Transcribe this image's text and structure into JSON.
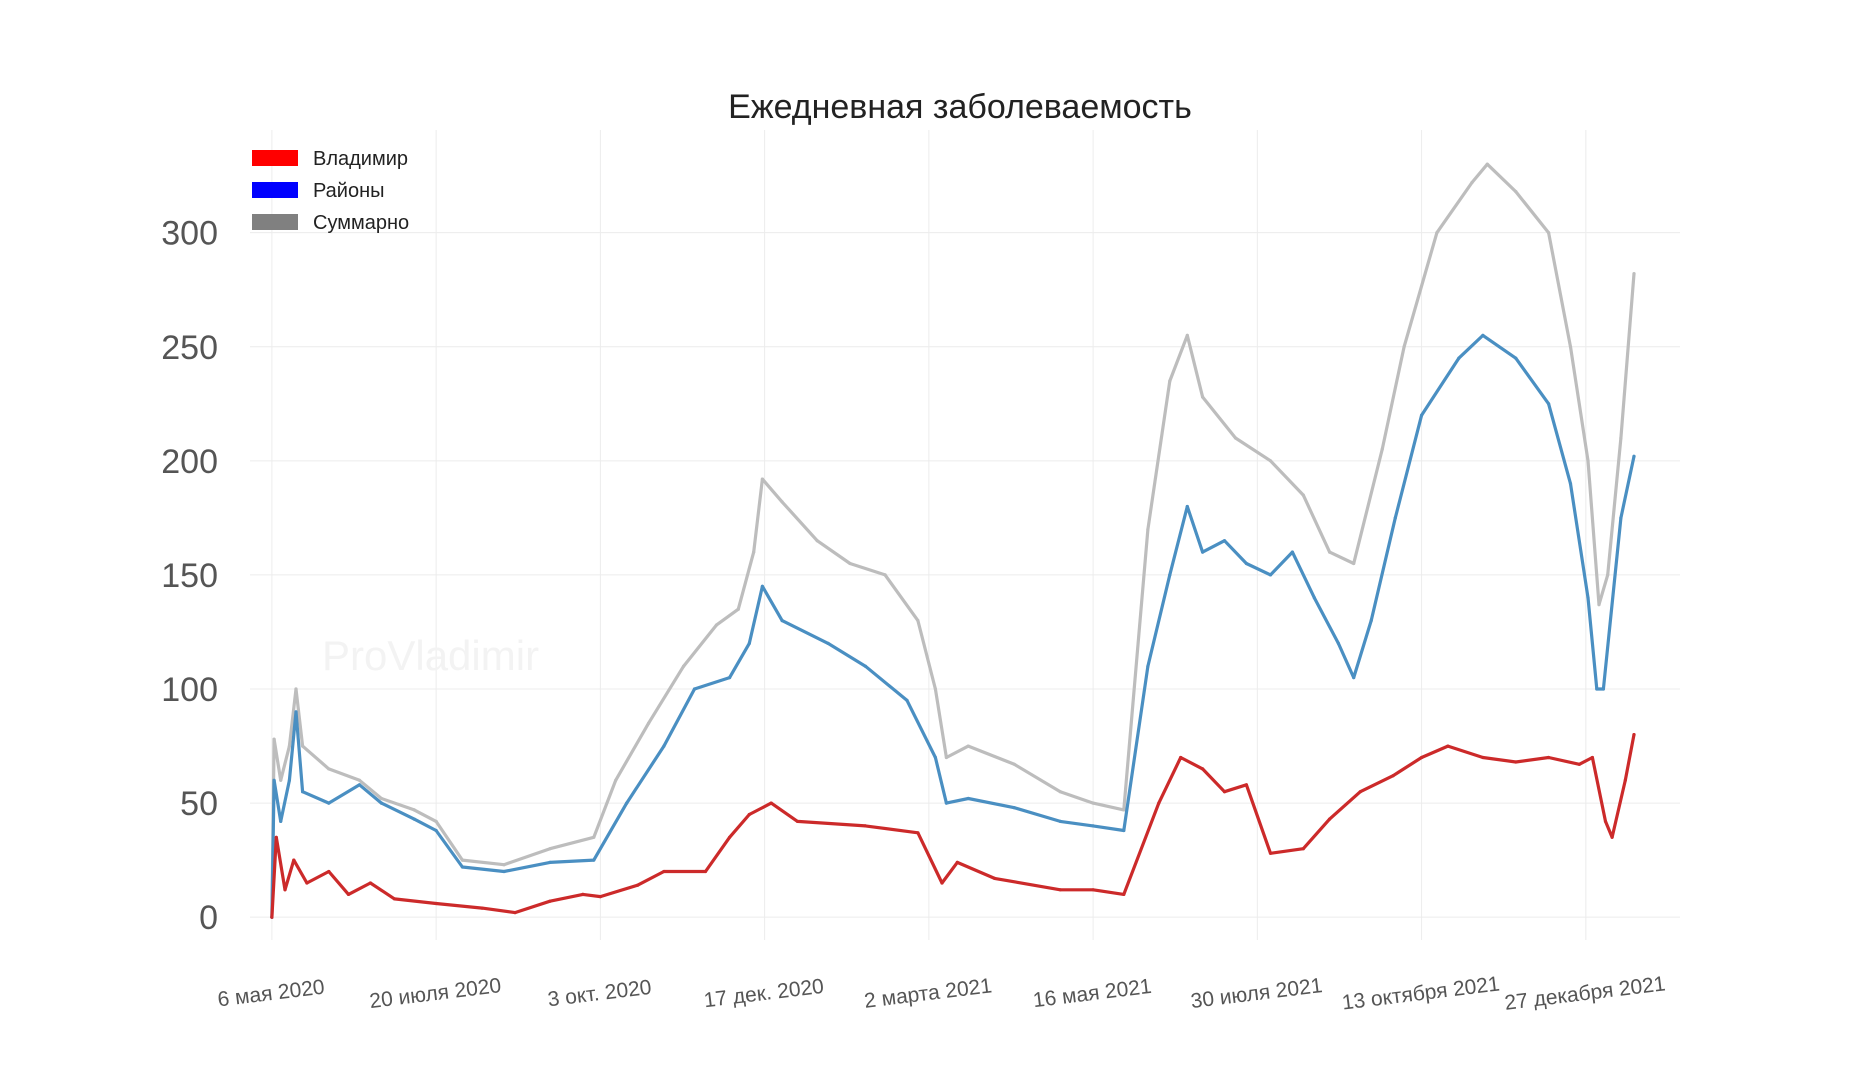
{
  "watermark": "ProVladimir",
  "chart_data": {
    "type": "line",
    "title": "Ежедневная заболеваемость",
    "xlabel": "",
    "ylabel": "",
    "ylim": [
      -10,
      345
    ],
    "yticks": [
      0,
      50,
      100,
      150,
      200,
      250,
      300
    ],
    "xlim": [
      "2020-04-26",
      "2022-02-08"
    ],
    "xticks": [
      {
        "date": "2020-05-06",
        "label": "6 мая 2020"
      },
      {
        "date": "2020-07-20",
        "label": "20 июля 2020"
      },
      {
        "date": "2020-10-03",
        "label": "3 окт. 2020"
      },
      {
        "date": "2020-12-17",
        "label": "17 дек. 2020"
      },
      {
        "date": "2021-03-02",
        "label": "2 марта 2021"
      },
      {
        "date": "2021-05-16",
        "label": "16 мая 2021"
      },
      {
        "date": "2021-07-30",
        "label": "30 июля 2021"
      },
      {
        "date": "2021-10-13",
        "label": "13 октября 2021"
      },
      {
        "date": "2021-12-27",
        "label": "27 декабря 2021"
      }
    ],
    "grid": true,
    "legend_position": "top-left",
    "series": [
      {
        "name": "Владимир",
        "color": "#cc2a2a",
        "legend_color": "#ff0000",
        "points": [
          [
            "2020-05-06",
            0
          ],
          [
            "2020-05-08",
            35
          ],
          [
            "2020-05-12",
            12
          ],
          [
            "2020-05-16",
            25
          ],
          [
            "2020-05-22",
            15
          ],
          [
            "2020-06-01",
            20
          ],
          [
            "2020-06-10",
            10
          ],
          [
            "2020-06-20",
            15
          ],
          [
            "2020-07-01",
            8
          ],
          [
            "2020-07-20",
            6
          ],
          [
            "2020-08-10",
            4
          ],
          [
            "2020-08-25",
            2
          ],
          [
            "2020-09-10",
            7
          ],
          [
            "2020-09-25",
            10
          ],
          [
            "2020-10-03",
            9
          ],
          [
            "2020-10-20",
            14
          ],
          [
            "2020-11-01",
            20
          ],
          [
            "2020-11-20",
            20
          ],
          [
            "2020-12-01",
            35
          ],
          [
            "2020-12-10",
            45
          ],
          [
            "2020-12-20",
            50
          ],
          [
            "2021-01-01",
            42
          ],
          [
            "2021-02-01",
            40
          ],
          [
            "2021-02-25",
            37
          ],
          [
            "2021-03-08",
            15
          ],
          [
            "2021-03-15",
            24
          ],
          [
            "2021-04-01",
            17
          ],
          [
            "2021-05-01",
            12
          ],
          [
            "2021-05-16",
            12
          ],
          [
            "2021-05-30",
            10
          ],
          [
            "2021-06-15",
            50
          ],
          [
            "2021-06-25",
            70
          ],
          [
            "2021-07-05",
            65
          ],
          [
            "2021-07-15",
            55
          ],
          [
            "2021-07-25",
            58
          ],
          [
            "2021-08-05",
            28
          ],
          [
            "2021-08-20",
            30
          ],
          [
            "2021-09-01",
            43
          ],
          [
            "2021-09-15",
            55
          ],
          [
            "2021-09-30",
            62
          ],
          [
            "2021-10-13",
            70
          ],
          [
            "2021-10-25",
            75
          ],
          [
            "2021-11-10",
            70
          ],
          [
            "2021-11-25",
            68
          ],
          [
            "2021-12-10",
            70
          ],
          [
            "2021-12-24",
            67
          ],
          [
            "2021-12-30",
            70
          ],
          [
            "2022-01-05",
            42
          ],
          [
            "2022-01-08",
            35
          ],
          [
            "2022-01-14",
            60
          ],
          [
            "2022-01-18",
            80
          ]
        ]
      },
      {
        "name": "Районы",
        "color": "#4a8fc2",
        "legend_color": "#0000ff",
        "points": [
          [
            "2020-05-06",
            0
          ],
          [
            "2020-05-07",
            60
          ],
          [
            "2020-05-10",
            42
          ],
          [
            "2020-05-14",
            60
          ],
          [
            "2020-05-17",
            90
          ],
          [
            "2020-05-20",
            55
          ],
          [
            "2020-06-01",
            50
          ],
          [
            "2020-06-15",
            58
          ],
          [
            "2020-06-25",
            50
          ],
          [
            "2020-07-10",
            43
          ],
          [
            "2020-07-20",
            38
          ],
          [
            "2020-08-01",
            22
          ],
          [
            "2020-08-20",
            20
          ],
          [
            "2020-09-10",
            24
          ],
          [
            "2020-09-30",
            25
          ],
          [
            "2020-10-15",
            50
          ],
          [
            "2020-11-01",
            75
          ],
          [
            "2020-11-15",
            100
          ],
          [
            "2020-12-01",
            105
          ],
          [
            "2020-12-10",
            120
          ],
          [
            "2020-12-16",
            145
          ],
          [
            "2020-12-25",
            130
          ],
          [
            "2021-01-15",
            120
          ],
          [
            "2021-02-01",
            110
          ],
          [
            "2021-02-20",
            95
          ],
          [
            "2021-03-05",
            70
          ],
          [
            "2021-03-10",
            50
          ],
          [
            "2021-03-20",
            52
          ],
          [
            "2021-04-10",
            48
          ],
          [
            "2021-05-01",
            42
          ],
          [
            "2021-05-16",
            40
          ],
          [
            "2021-05-30",
            38
          ],
          [
            "2021-06-10",
            110
          ],
          [
            "2021-06-20",
            150
          ],
          [
            "2021-06-28",
            180
          ],
          [
            "2021-07-05",
            160
          ],
          [
            "2021-07-15",
            165
          ],
          [
            "2021-07-25",
            155
          ],
          [
            "2021-08-05",
            150
          ],
          [
            "2021-08-15",
            160
          ],
          [
            "2021-08-25",
            140
          ],
          [
            "2021-09-05",
            120
          ],
          [
            "2021-09-12",
            105
          ],
          [
            "2021-09-20",
            130
          ],
          [
            "2021-10-01",
            175
          ],
          [
            "2021-10-13",
            220
          ],
          [
            "2021-10-30",
            245
          ],
          [
            "2021-11-10",
            255
          ],
          [
            "2021-11-25",
            245
          ],
          [
            "2021-12-10",
            225
          ],
          [
            "2021-12-20",
            190
          ],
          [
            "2021-12-28",
            140
          ],
          [
            "2022-01-01",
            100
          ],
          [
            "2022-01-04",
            100
          ],
          [
            "2022-01-12",
            175
          ],
          [
            "2022-01-18",
            202
          ]
        ]
      },
      {
        "name": "Суммарно",
        "color": "#bdbdbd",
        "legend_color": "#808080",
        "points": [
          [
            "2020-05-06",
            0
          ],
          [
            "2020-05-07",
            78
          ],
          [
            "2020-05-10",
            60
          ],
          [
            "2020-05-14",
            75
          ],
          [
            "2020-05-17",
            100
          ],
          [
            "2020-05-20",
            75
          ],
          [
            "2020-06-01",
            65
          ],
          [
            "2020-06-15",
            60
          ],
          [
            "2020-06-25",
            52
          ],
          [
            "2020-07-10",
            47
          ],
          [
            "2020-07-20",
            42
          ],
          [
            "2020-08-01",
            25
          ],
          [
            "2020-08-20",
            23
          ],
          [
            "2020-09-10",
            30
          ],
          [
            "2020-09-30",
            35
          ],
          [
            "2020-10-10",
            60
          ],
          [
            "2020-10-25",
            85
          ],
          [
            "2020-11-10",
            110
          ],
          [
            "2020-11-25",
            128
          ],
          [
            "2020-12-05",
            135
          ],
          [
            "2020-12-12",
            160
          ],
          [
            "2020-12-16",
            192
          ],
          [
            "2020-12-25",
            182
          ],
          [
            "2021-01-10",
            165
          ],
          [
            "2021-01-25",
            155
          ],
          [
            "2021-02-10",
            150
          ],
          [
            "2021-02-25",
            130
          ],
          [
            "2021-03-05",
            100
          ],
          [
            "2021-03-10",
            70
          ],
          [
            "2021-03-20",
            75
          ],
          [
            "2021-04-10",
            67
          ],
          [
            "2021-05-01",
            55
          ],
          [
            "2021-05-16",
            50
          ],
          [
            "2021-05-30",
            47
          ],
          [
            "2021-06-10",
            170
          ],
          [
            "2021-06-20",
            235
          ],
          [
            "2021-06-28",
            255
          ],
          [
            "2021-07-05",
            228
          ],
          [
            "2021-07-20",
            210
          ],
          [
            "2021-08-05",
            200
          ],
          [
            "2021-08-20",
            185
          ],
          [
            "2021-09-01",
            160
          ],
          [
            "2021-09-12",
            155
          ],
          [
            "2021-09-25",
            205
          ],
          [
            "2021-10-05",
            250
          ],
          [
            "2021-10-20",
            300
          ],
          [
            "2021-11-05",
            322
          ],
          [
            "2021-11-12",
            330
          ],
          [
            "2021-11-25",
            318
          ],
          [
            "2021-12-10",
            300
          ],
          [
            "2021-12-20",
            250
          ],
          [
            "2021-12-28",
            200
          ],
          [
            "2022-01-02",
            137
          ],
          [
            "2022-01-06",
            150
          ],
          [
            "2022-01-12",
            210
          ],
          [
            "2022-01-18",
            282
          ]
        ]
      }
    ]
  }
}
